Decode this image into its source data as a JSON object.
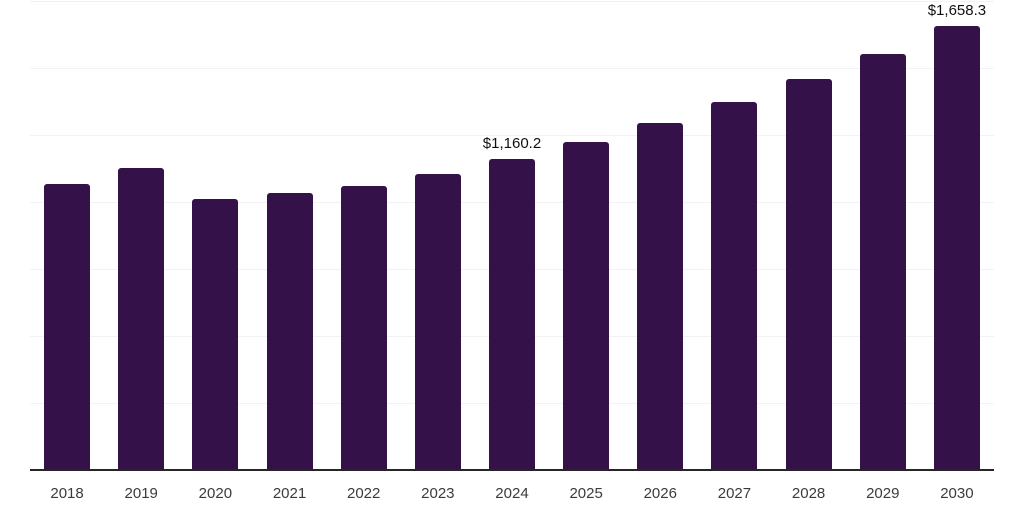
{
  "chart_data": {
    "type": "bar",
    "title": "",
    "xlabel": "",
    "ylabel": "",
    "categories": [
      "2018",
      "2019",
      "2020",
      "2021",
      "2022",
      "2023",
      "2024",
      "2025",
      "2026",
      "2027",
      "2028",
      "2029",
      "2030"
    ],
    "values": [
      1066,
      1126,
      1010,
      1033,
      1059,
      1104,
      1160.2,
      1223,
      1294,
      1372,
      1458,
      1551,
      1658.3
    ],
    "data_labels": {
      "2024": "$1,160.2",
      "2030": "$1,658.3"
    },
    "ylim": [
      0,
      1750
    ],
    "gridline_step": 250,
    "grid": "horizontal-only",
    "legend": "none",
    "y_axis_ticks_visible": false,
    "colors": {
      "bar": "#341149",
      "axis_line": "#262626",
      "gridline": "#f2f2f4",
      "value_label": "#111111",
      "tick_label": "#3b3b3b",
      "background": "#ffffff"
    }
  }
}
